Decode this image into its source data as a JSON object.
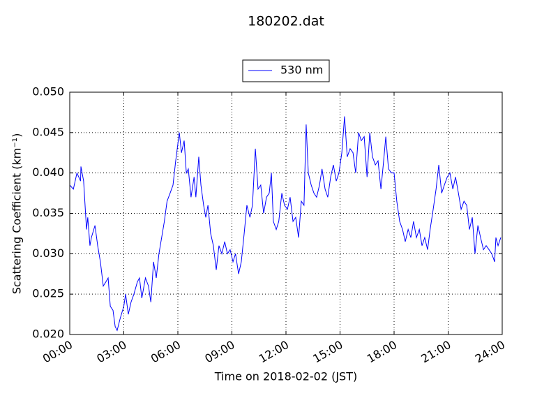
{
  "chart_data": {
    "type": "line",
    "title": "180202.dat",
    "xlabel": "Time on 2018-02-02 (JST)",
    "ylabel": "Scattering Coefficient (km⁻¹)",
    "x": [
      0,
      0.2,
      0.4,
      0.6,
      0.62,
      0.77,
      0.93,
      1.0,
      1.12,
      1.2,
      1.4,
      1.55,
      1.7,
      1.86,
      2.0,
      2.13,
      2.25,
      2.4,
      2.52,
      2.63,
      2.8,
      3.0,
      3.1,
      3.25,
      3.4,
      3.56,
      3.75,
      3.87,
      4.0,
      4.2,
      4.37,
      4.5,
      4.65,
      4.8,
      4.95,
      5.1,
      5.25,
      5.4,
      5.57,
      5.73,
      5.88,
      6.08,
      6.2,
      6.35,
      6.47,
      6.58,
      6.73,
      6.9,
      7.0,
      7.16,
      7.28,
      7.43,
      7.55,
      7.67,
      7.82,
      7.97,
      8.13,
      8.28,
      8.44,
      8.6,
      8.75,
      8.9,
      9.06,
      9.2,
      9.37,
      9.52,
      9.68,
      9.83,
      10.0,
      10.14,
      10.3,
      10.45,
      10.6,
      10.76,
      10.92,
      11.07,
      11.19,
      11.3,
      11.46,
      11.6,
      11.77,
      11.92,
      12.08,
      12.23,
      12.39,
      12.54,
      12.7,
      12.85,
      13.0,
      13.12,
      13.24,
      13.4,
      13.55,
      13.7,
      13.86,
      14.0,
      14.17,
      14.32,
      14.48,
      14.63,
      14.79,
      14.94,
      15.1,
      15.25,
      15.4,
      15.56,
      15.72,
      15.87,
      16.03,
      16.18,
      16.34,
      16.5,
      16.65,
      16.8,
      16.96,
      17.11,
      17.27,
      17.42,
      17.54,
      17.69,
      17.85,
      18.0,
      18.15,
      18.31,
      18.47,
      18.62,
      18.78,
      18.93,
      19.08,
      19.24,
      19.4,
      19.55,
      19.7,
      19.86,
      20.0,
      20.17,
      20.33,
      20.48,
      20.64,
      20.79,
      20.95,
      21.1,
      21.26,
      21.41,
      21.57,
      21.72,
      21.88,
      22.03,
      22.18,
      22.34,
      22.49,
      22.65,
      22.8,
      22.96,
      23.11,
      23.27,
      23.42,
      23.58,
      23.65,
      23.77,
      23.92
    ],
    "series": [
      {
        "name": "530 nm",
        "color": "#0000ff",
        "values": [
          0.0385,
          0.038,
          0.04,
          0.039,
          0.0408,
          0.039,
          0.033,
          0.0345,
          0.031,
          0.032,
          0.0335,
          0.031,
          0.029,
          0.026,
          0.0265,
          0.027,
          0.0235,
          0.023,
          0.021,
          0.0205,
          0.022,
          0.0235,
          0.025,
          0.0225,
          0.024,
          0.025,
          0.0265,
          0.027,
          0.0245,
          0.027,
          0.026,
          0.024,
          0.029,
          0.027,
          0.03,
          0.032,
          0.034,
          0.0365,
          0.0375,
          0.0385,
          0.0415,
          0.045,
          0.0425,
          0.044,
          0.04,
          0.0405,
          0.037,
          0.0395,
          0.037,
          0.042,
          0.0385,
          0.036,
          0.0345,
          0.036,
          0.0325,
          0.031,
          0.028,
          0.031,
          0.03,
          0.0315,
          0.03,
          0.0305,
          0.029,
          0.03,
          0.0275,
          0.029,
          0.0325,
          0.036,
          0.0345,
          0.036,
          0.043,
          0.038,
          0.0385,
          0.035,
          0.037,
          0.0375,
          0.04,
          0.034,
          0.033,
          0.034,
          0.0375,
          0.036,
          0.0355,
          0.037,
          0.034,
          0.0345,
          0.032,
          0.0365,
          0.036,
          0.046,
          0.04,
          0.0385,
          0.0375,
          0.037,
          0.0385,
          0.0405,
          0.038,
          0.037,
          0.0395,
          0.041,
          0.039,
          0.04,
          0.0425,
          0.047,
          0.042,
          0.043,
          0.0425,
          0.04,
          0.045,
          0.044,
          0.0445,
          0.0395,
          0.045,
          0.042,
          0.041,
          0.0415,
          0.038,
          0.0415,
          0.0445,
          0.0405,
          0.04,
          0.04,
          0.0365,
          0.034,
          0.033,
          0.0315,
          0.033,
          0.032,
          0.034,
          0.032,
          0.033,
          0.031,
          0.032,
          0.0305,
          0.033,
          0.0355,
          0.038,
          0.041,
          0.0375,
          0.0385,
          0.0395,
          0.04,
          0.038,
          0.0395,
          0.0375,
          0.0355,
          0.0365,
          0.036,
          0.033,
          0.0345,
          0.03,
          0.0335,
          0.032,
          0.0305,
          0.031,
          0.0305,
          0.03,
          0.029,
          0.032,
          0.031,
          0.032
        ]
      }
    ],
    "xlim": [
      0,
      24
    ],
    "xticks": [
      {
        "value": 0,
        "label": "00:00"
      },
      {
        "value": 3,
        "label": "03:00"
      },
      {
        "value": 6,
        "label": "06:00"
      },
      {
        "value": 9,
        "label": "09:00"
      },
      {
        "value": 12,
        "label": "12:00"
      },
      {
        "value": 15,
        "label": "15:00"
      },
      {
        "value": 18,
        "label": "18:00"
      },
      {
        "value": 21,
        "label": "21:00"
      },
      {
        "value": 24,
        "label": "24:00"
      }
    ],
    "ylim": [
      0.02,
      0.05
    ],
    "yticks": [
      {
        "value": 0.02,
        "label": "0.020"
      },
      {
        "value": 0.025,
        "label": "0.025"
      },
      {
        "value": 0.03,
        "label": "0.030"
      },
      {
        "value": 0.035,
        "label": "0.035"
      },
      {
        "value": 0.04,
        "label": "0.040"
      },
      {
        "value": 0.045,
        "label": "0.045"
      },
      {
        "value": 0.05,
        "label": "0.050"
      }
    ],
    "grid": true,
    "legend": "top"
  }
}
